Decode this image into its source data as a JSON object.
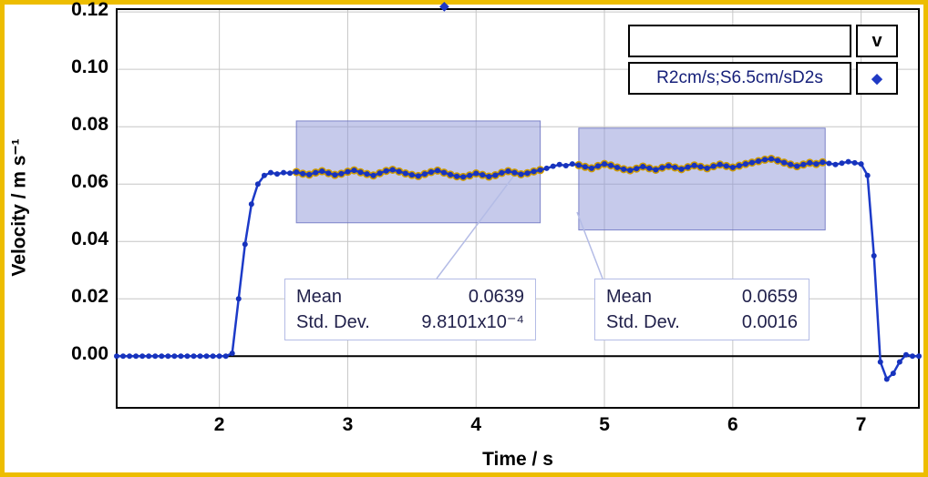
{
  "icons": {
    "selection_handle_glyph": "◆"
  },
  "legend": {
    "channel_label": "v",
    "series_label": "R2cm/s;S6.5cm/sD2s",
    "marker_glyph": "◆",
    "empty_value": ""
  },
  "stats_labels": {
    "mean": "Mean",
    "std": "Std. Dev."
  },
  "colors": {
    "frame": "#edbd00",
    "line": "#1c3ac8",
    "marker": "#1733bd",
    "highlight": "#cf9b00",
    "selection_fill": "rgba(142,150,216,0.5)",
    "selection_stroke": "rgba(100,108,190,0.8)",
    "grid": "#c6c6c6",
    "connector": "#b4bce6"
  },
  "chart_data": {
    "type": "line",
    "title": "",
    "xlabel": "Time / s",
    "ylabel": "Velocity / m s⁻¹",
    "xlim": [
      1.2,
      7.45
    ],
    "ylim": [
      -0.018,
      0.121
    ],
    "x_ticks": [
      2,
      3,
      4,
      5,
      6,
      7
    ],
    "y_ticks": [
      0,
      0.02,
      0.04,
      0.06,
      0.08,
      0.1,
      0.12
    ],
    "y_tick_labels": [
      "0.00",
      "0.02",
      "0.04",
      "0.06",
      "0.08",
      "0.10",
      "0.12"
    ],
    "grid": true,
    "legend_position": "top-right",
    "series": [
      {
        "name": "R2cm/s;S6.5cm/sD2s",
        "marker": "diamond",
        "t_start": 1.2,
        "t_step": 0.05,
        "values": [
          0,
          0,
          0,
          0,
          0,
          0,
          0,
          0,
          0,
          0,
          0,
          0,
          0,
          0,
          0,
          0,
          0,
          0,
          0.001,
          0.02,
          0.039,
          0.053,
          0.06,
          0.063,
          0.064,
          0.0635,
          0.064,
          0.0638,
          0.0642,
          0.0636,
          0.0633,
          0.064,
          0.0645,
          0.0638,
          0.0632,
          0.0636,
          0.0643,
          0.0648,
          0.0641,
          0.0635,
          0.063,
          0.0638,
          0.0646,
          0.065,
          0.0644,
          0.0637,
          0.0632,
          0.0628,
          0.0635,
          0.0642,
          0.0647,
          0.064,
          0.0633,
          0.0627,
          0.0625,
          0.063,
          0.0637,
          0.0632,
          0.0626,
          0.0631,
          0.0639,
          0.0645,
          0.064,
          0.0634,
          0.0638,
          0.0644,
          0.0649,
          0.0655,
          0.0662,
          0.0668,
          0.0664,
          0.067,
          0.0666,
          0.066,
          0.0655,
          0.0663,
          0.067,
          0.0665,
          0.0658,
          0.0652,
          0.0648,
          0.0654,
          0.0661,
          0.0655,
          0.065,
          0.0657,
          0.0663,
          0.0658,
          0.0652,
          0.0659,
          0.0665,
          0.066,
          0.0655,
          0.0662,
          0.0668,
          0.0663,
          0.0658,
          0.0664,
          0.067,
          0.0675,
          0.068,
          0.0685,
          0.0688,
          0.0682,
          0.0675,
          0.0668,
          0.0662,
          0.0668,
          0.0674,
          0.067,
          0.0676,
          0.0672,
          0.0668,
          0.0673,
          0.0678,
          0.0674,
          0.067,
          0.063,
          0.035,
          -0.002,
          -0.008,
          -0.006,
          -0.002,
          0.0005,
          0,
          0
        ]
      }
    ],
    "selections": [
      {
        "x1": 2.6,
        "x2": 4.5,
        "y1": 0.0465,
        "y2": 0.082,
        "mean": "0.0639",
        "std_dev": "9.8101x10⁻⁴"
      },
      {
        "x1": 4.8,
        "x2": 6.72,
        "y1": 0.044,
        "y2": 0.0795,
        "mean": "0.0659",
        "std_dev": "0.0016"
      }
    ]
  }
}
